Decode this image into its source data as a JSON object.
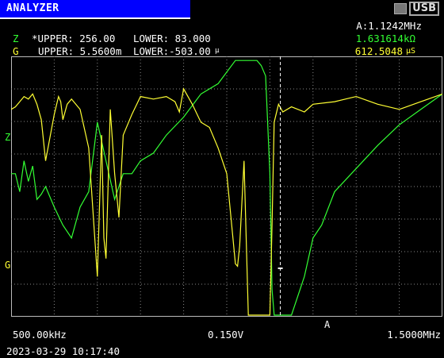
{
  "header": {
    "title": "ANALYZER",
    "usb_label": "USB",
    "marker_freq": "A:1.1242MHz"
  },
  "readouts": {
    "z": {
      "letter": "Z",
      "upper_label": "*UPPER: 256.00",
      "lower_label": "LOWER: 83.000",
      "value": "1.631614kΩ"
    },
    "g": {
      "letter": "G",
      "upper_label": "UPPER: 5.5600m",
      "lower_label": "LOWER:-503.00",
      "lower_unit": "μ",
      "value": "612.5048",
      "value_unit": "μS"
    }
  },
  "axis_markers": {
    "z": "Z",
    "g": "G",
    "cursor": "A"
  },
  "footer": {
    "start_freq": "500.00kHz",
    "level": "0.150V",
    "stop_freq": "1.5000MHz",
    "timestamp": "2023-03-29 10:17:40"
  },
  "colors": {
    "z_trace": "#33ff33",
    "g_trace": "#ffff33",
    "title_bg": "#0000ff",
    "grid": "#888888"
  },
  "chart_data": {
    "type": "line",
    "x_range": [
      0.5,
      1.5
    ],
    "x_unit": "MHz",
    "cursor_x": 1.1242,
    "series": [
      {
        "name": "Z",
        "x": [
          0.5,
          0.51,
          0.52,
          0.53,
          0.54,
          0.55,
          0.56,
          0.57,
          0.58,
          0.6,
          0.62,
          0.64,
          0.66,
          0.68,
          0.7,
          0.72,
          0.74,
          0.76,
          0.78,
          0.8,
          0.83,
          0.86,
          0.9,
          0.94,
          0.98,
          1.02,
          1.06,
          1.07,
          1.08,
          1.09,
          1.1,
          1.105,
          1.11,
          1.12,
          1.13,
          1.15,
          1.18,
          1.2,
          1.22,
          1.25,
          1.3,
          1.35,
          1.4,
          1.45,
          1.5
        ],
        "values": [
          0.55,
          0.55,
          0.48,
          0.6,
          0.52,
          0.58,
          0.45,
          0.47,
          0.5,
          0.42,
          0.35,
          0.3,
          0.42,
          0.48,
          0.75,
          0.6,
          0.45,
          0.55,
          0.55,
          0.6,
          0.63,
          0.7,
          0.77,
          0.86,
          0.9,
          0.99,
          0.99,
          0.99,
          0.97,
          0.93,
          0.55,
          0.1,
          0.0,
          0.0,
          0.0,
          0.0,
          0.15,
          0.3,
          0.35,
          0.48,
          0.57,
          0.66,
          0.74,
          0.8,
          0.86
        ]
      },
      {
        "name": "G",
        "x": [
          0.5,
          0.51,
          0.52,
          0.53,
          0.54,
          0.55,
          0.56,
          0.57,
          0.58,
          0.6,
          0.61,
          0.615,
          0.62,
          0.63,
          0.64,
          0.66,
          0.68,
          0.7,
          0.71,
          0.715,
          0.72,
          0.73,
          0.74,
          0.75,
          0.76,
          0.78,
          0.8,
          0.83,
          0.86,
          0.88,
          0.89,
          0.9,
          0.92,
          0.94,
          0.96,
          0.98,
          1.0,
          1.02,
          1.025,
          1.03,
          1.04,
          1.05,
          1.06,
          1.08,
          1.1,
          1.105,
          1.11,
          1.12,
          1.13,
          1.15,
          1.18,
          1.2,
          1.25,
          1.3,
          1.35,
          1.4,
          1.45,
          1.5
        ],
        "values": [
          0.8,
          0.81,
          0.83,
          0.85,
          0.84,
          0.86,
          0.82,
          0.76,
          0.6,
          0.78,
          0.85,
          0.83,
          0.76,
          0.82,
          0.84,
          0.8,
          0.65,
          0.15,
          0.7,
          0.3,
          0.22,
          0.8,
          0.55,
          0.38,
          0.7,
          0.78,
          0.85,
          0.84,
          0.85,
          0.83,
          0.79,
          0.88,
          0.82,
          0.75,
          0.73,
          0.65,
          0.55,
          0.2,
          0.19,
          0.27,
          0.6,
          0.0,
          0.0,
          0.0,
          0.0,
          0.35,
          0.75,
          0.82,
          0.79,
          0.81,
          0.79,
          0.82,
          0.83,
          0.85,
          0.82,
          0.8,
          0.83,
          0.86
        ]
      }
    ]
  }
}
